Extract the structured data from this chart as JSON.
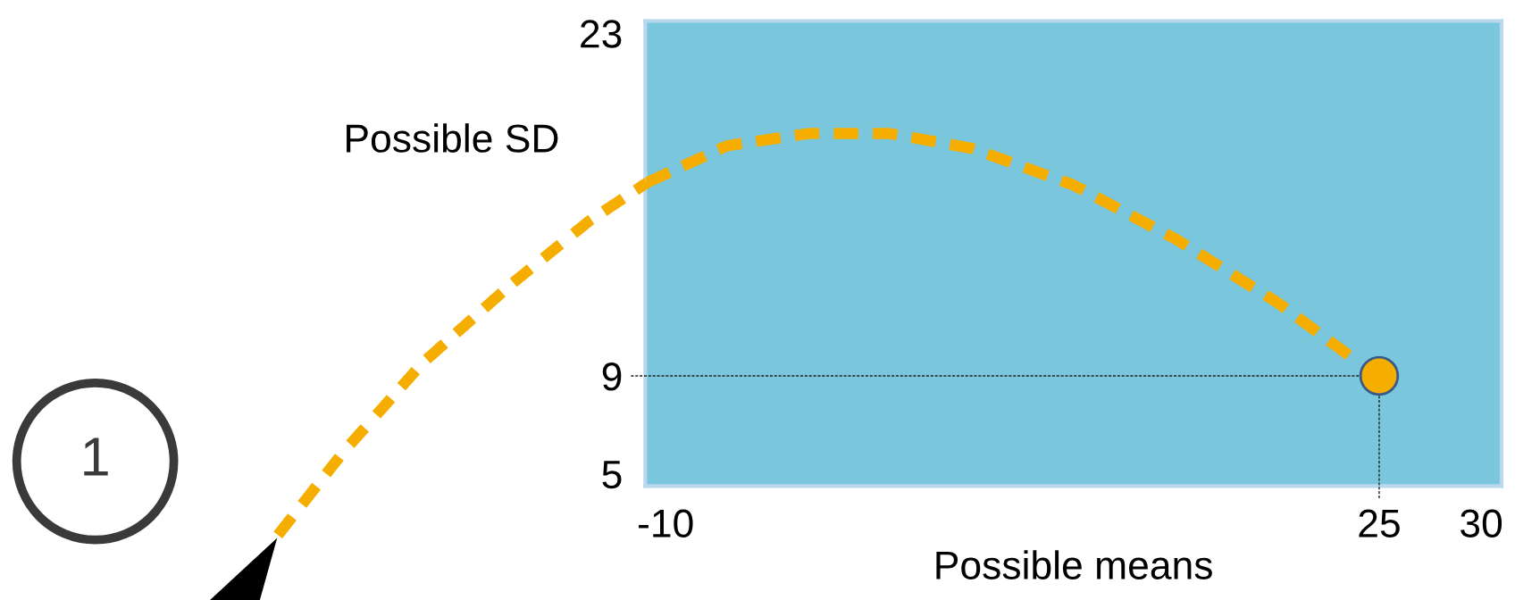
{
  "chart_data": {
    "type": "scatter",
    "xlabel": "Possible means",
    "ylabel": "Possible SD",
    "series": [
      {
        "type": "line",
        "color": "#f5ae00",
        "line_style": "dashed",
        "marker": "none",
        "x": [
          -10.9,
          -7,
          -3,
          1,
          5,
          10,
          15,
          20,
          23.9
        ],
        "values": [
          16.9,
          18.4,
          18.9,
          18.9,
          18.3,
          16.8,
          14.6,
          12.0,
          9.6
        ]
      },
      {
        "color": "#f5ae00",
        "marker": "circle",
        "x": [
          25
        ],
        "values": [
          9
        ]
      }
    ],
    "xlim": [
      -11,
      31
    ],
    "xticks": [
      -10,
      25,
      30
    ],
    "ylim": [
      4.5,
      23.5
    ],
    "yticks": [
      5,
      9,
      23
    ],
    "grid": false,
    "ref_lines": [
      {
        "axis": "y",
        "value": 9,
        "color": "#222222",
        "line_style": "dashed"
      },
      {
        "axis": "x",
        "value": 25,
        "color": "#222222",
        "line_style": "dashed"
      }
    ],
    "annotations": [
      "1"
    ]
  }
}
